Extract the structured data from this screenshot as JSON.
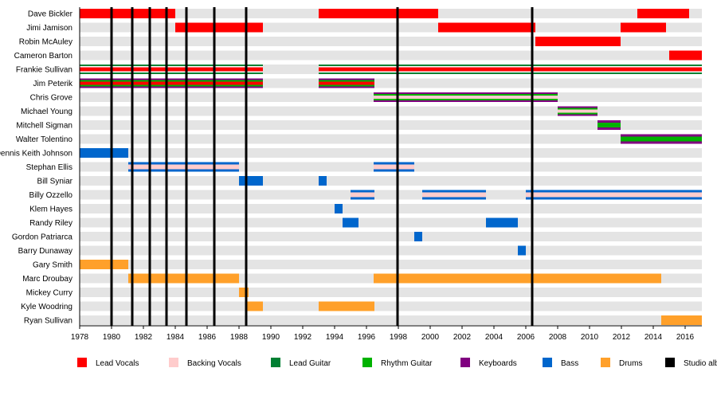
{
  "chart_data": {
    "type": "timeline",
    "title": "",
    "xlim": [
      1978,
      2017.05
    ],
    "x_ticks": [
      1978,
      1980,
      1982,
      1984,
      1986,
      1988,
      1990,
      1992,
      1994,
      1996,
      1998,
      2000,
      2002,
      2004,
      2006,
      2008,
      2010,
      2012,
      2014,
      2016
    ],
    "grid": false,
    "legend_position": "bottom",
    "roles": {
      "lead_vocals": {
        "label": "Lead Vocals",
        "color": "#ff0000"
      },
      "backing_vocals": {
        "label": "Backing Vocals",
        "color": "#ffcccc"
      },
      "lead_guitar": {
        "label": "Lead Guitar",
        "color": "#008033"
      },
      "rhythm_guitar": {
        "label": "Rhythm Guitar",
        "color": "#00b200"
      },
      "keyboards": {
        "label": "Keyboards",
        "color": "#800080"
      },
      "bass": {
        "label": "Bass",
        "color": "#0066cc"
      },
      "drums": {
        "label": "Drums",
        "color": "#ffa02a"
      },
      "studio_album": {
        "label": "Studio album",
        "color": "#000000"
      }
    },
    "legend": [
      "lead_vocals",
      "backing_vocals",
      "lead_guitar",
      "rhythm_guitar",
      "keyboards",
      "bass",
      "drums",
      "studio_album"
    ],
    "studio_albums": [
      1980.0,
      1981.3,
      1982.4,
      1983.45,
      1984.7,
      1986.45,
      1988.45,
      1997.95,
      2006.4
    ],
    "members": [
      {
        "name": "Dave Bickler",
        "roles": [
          "lead_vocals"
        ],
        "periods": [
          [
            1978,
            1984
          ],
          [
            1993,
            2000.5
          ],
          [
            2013,
            2016.25
          ]
        ]
      },
      {
        "name": "Jimi Jamison",
        "roles": [
          "lead_vocals"
        ],
        "periods": [
          [
            1984,
            1989.5
          ],
          [
            2000.5,
            2006.6
          ],
          [
            2011.95,
            2014.8
          ]
        ]
      },
      {
        "name": "Robin McAuley",
        "roles": [
          "lead_vocals"
        ],
        "periods": [
          [
            2006.6,
            2011.95
          ]
        ]
      },
      {
        "name": "Cameron Barton",
        "roles": [
          "lead_vocals"
        ],
        "periods": [
          [
            2015,
            2017.05
          ]
        ]
      },
      {
        "name": "Frankie Sullivan",
        "roles": [
          "lead_guitar",
          "lead_vocals"
        ],
        "periods": [
          [
            1978,
            1989.5
          ],
          [
            1993,
            2017.05
          ]
        ]
      },
      {
        "name": "Jim Peterik",
        "roles": [
          "keyboards",
          "rhythm_guitar",
          "lead_vocals"
        ],
        "periods": [
          [
            1978,
            1989.5
          ],
          [
            1993,
            1996.5
          ]
        ]
      },
      {
        "name": "Chris Grove",
        "roles": [
          "keyboards",
          "rhythm_guitar",
          "backing_vocals"
        ],
        "periods": [
          [
            1996.45,
            2008
          ]
        ]
      },
      {
        "name": "Michael Young",
        "roles": [
          "keyboards",
          "rhythm_guitar",
          "backing_vocals"
        ],
        "periods": [
          [
            2008,
            2010.5
          ]
        ]
      },
      {
        "name": "Mitchell Sigman",
        "roles": [
          "keyboards",
          "rhythm_guitar"
        ],
        "periods": [
          [
            2010.5,
            2011.95
          ]
        ]
      },
      {
        "name": "Walter Tolentino",
        "roles": [
          "keyboards",
          "rhythm_guitar"
        ],
        "periods": [
          [
            2011.95,
            2017.05
          ]
        ]
      },
      {
        "name": "Dennis Keith Johnson",
        "roles": [
          "bass"
        ],
        "periods": [
          [
            1978,
            1981.05
          ]
        ]
      },
      {
        "name": "Stephan Ellis",
        "roles": [
          "bass",
          "backing_vocals"
        ],
        "periods": [
          [
            1981.05,
            1988
          ],
          [
            1996.45,
            1999
          ]
        ]
      },
      {
        "name": "Bill Syniar",
        "roles": [
          "bass"
        ],
        "periods": [
          [
            1988,
            1989.5
          ],
          [
            1993,
            1993.5
          ]
        ]
      },
      {
        "name": "Billy Ozzello",
        "roles": [
          "bass",
          "backing_vocals"
        ],
        "periods": [
          [
            1995,
            1996.5
          ],
          [
            1999.5,
            2003.5
          ],
          [
            2006,
            2017.05
          ]
        ]
      },
      {
        "name": "Klem Hayes",
        "roles": [
          "bass"
        ],
        "periods": [
          [
            1994,
            1994.5
          ]
        ]
      },
      {
        "name": "Randy Riley",
        "roles": [
          "bass"
        ],
        "periods": [
          [
            1994.5,
            1995.5
          ],
          [
            2003.5,
            2005.5
          ]
        ]
      },
      {
        "name": "Gordon Patriarca",
        "roles": [
          "bass"
        ],
        "periods": [
          [
            1999,
            1999.5
          ]
        ]
      },
      {
        "name": "Barry Dunaway",
        "roles": [
          "bass"
        ],
        "periods": [
          [
            2005.5,
            2006
          ]
        ]
      },
      {
        "name": "Gary Smith",
        "roles": [
          "drums"
        ],
        "periods": [
          [
            1978,
            1981.05
          ]
        ]
      },
      {
        "name": "Marc Droubay",
        "roles": [
          "drums"
        ],
        "periods": [
          [
            1981.05,
            1988
          ],
          [
            1996.45,
            2014.5
          ]
        ]
      },
      {
        "name": "Mickey Curry",
        "roles": [
          "drums"
        ],
        "periods": [
          [
            1988,
            1988.6
          ]
        ]
      },
      {
        "name": "Kyle Woodring",
        "roles": [
          "drums"
        ],
        "periods": [
          [
            1988.5,
            1989.5
          ],
          [
            1993,
            1996.5
          ]
        ]
      },
      {
        "name": "Ryan Sullivan",
        "roles": [
          "drums"
        ],
        "periods": [
          [
            2014.5,
            2017.05
          ]
        ]
      }
    ]
  }
}
